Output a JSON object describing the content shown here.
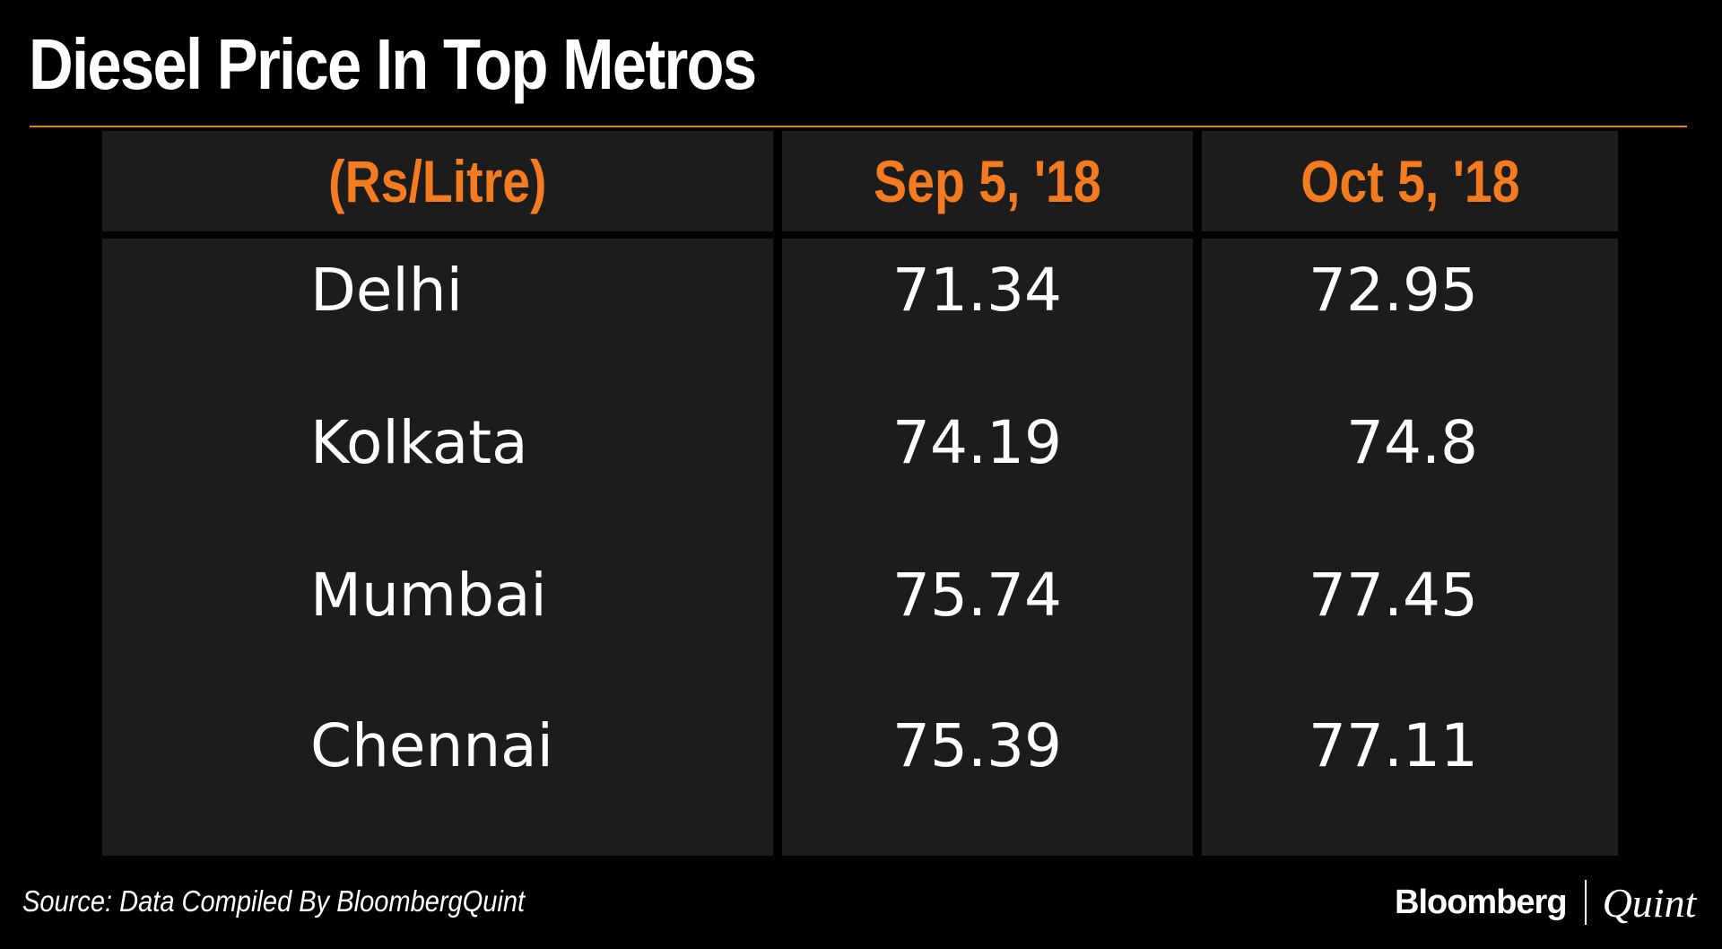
{
  "chart_data": {
    "type": "table",
    "title": "Diesel Price In Top Metros",
    "columns": [
      "(Rs/Litre)",
      "Sep 5, '18",
      "Oct 5, '18"
    ],
    "rows": [
      {
        "city": "Delhi",
        "sep": "71.34",
        "oct": "72.95"
      },
      {
        "city": "Kolkata",
        "sep": "74.19",
        "oct": "74.8"
      },
      {
        "city": "Mumbai",
        "sep": "75.74",
        "oct": "77.45"
      },
      {
        "city": "Chennai",
        "sep": "75.39",
        "oct": "77.11"
      }
    ],
    "source": "Source: Data Compiled By BloombergQuint"
  },
  "brand": {
    "name_a": "Bloomberg",
    "name_b": "Quint"
  },
  "colors": {
    "accent": "#f47b20",
    "background": "#000000",
    "cell": "#1c1c1c",
    "text": "#ffffff"
  }
}
